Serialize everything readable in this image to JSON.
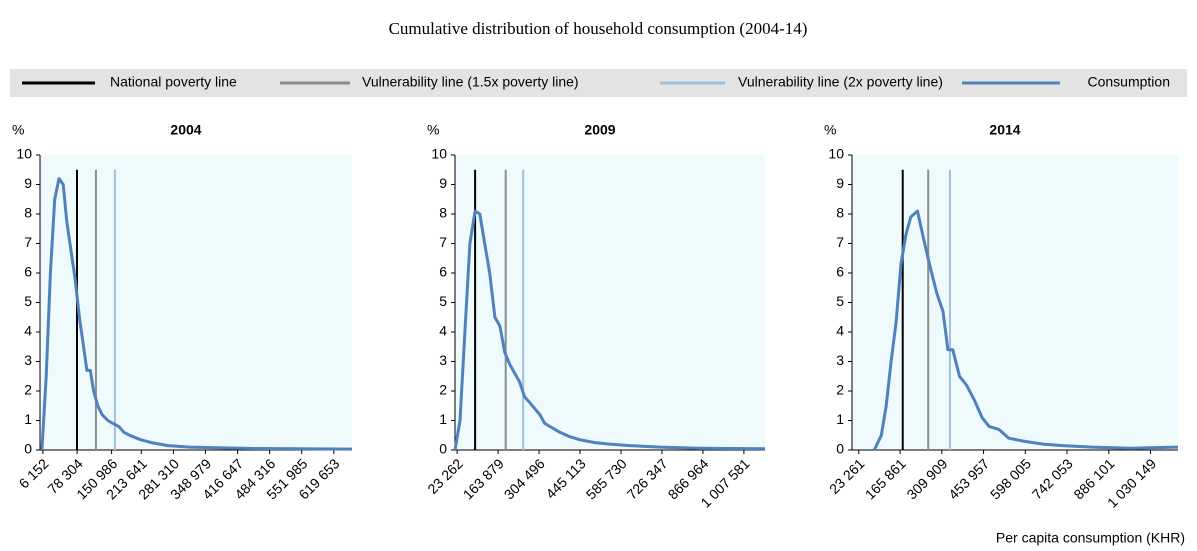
{
  "title": "Cumulative distribution of household consumption (2004-14)",
  "x_label": "Per capita consumption (KHR)",
  "legend": [
    {
      "name": "National poverty line",
      "color": "#000000"
    },
    {
      "name": "Vulnerability line (1.5x poverty line)",
      "color": "#8c8c8c"
    },
    {
      "name": "Vulnerability line (2x poverty line)",
      "color": "#9fc0de"
    },
    {
      "name": "Consumption",
      "color": "#4f81bd"
    }
  ],
  "chart_data": [
    {
      "type": "line",
      "title": "2004",
      "y_label": "%",
      "xlim": [
        0,
        658000
      ],
      "xticks": [
        {
          "value": 6152,
          "label": "6 152"
        },
        {
          "value": 78304,
          "label": "78 304"
        },
        {
          "value": 150986,
          "label": "150 986"
        },
        {
          "value": 213641,
          "label": "213 641"
        },
        {
          "value": 281310,
          "label": "281 310"
        },
        {
          "value": 348979,
          "label": "348 979"
        },
        {
          "value": 416647,
          "label": "416 647"
        },
        {
          "value": 484316,
          "label": "484 316"
        },
        {
          "value": 551985,
          "label": "551 985"
        },
        {
          "value": 619653,
          "label": "619 653"
        }
      ],
      "ylim": [
        0,
        10
      ],
      "yticks": [
        0,
        1,
        2,
        3,
        4,
        5,
        6,
        7,
        8,
        9,
        10
      ],
      "poverty_lines": [
        78000,
        118000,
        158000
      ],
      "x": [
        4000,
        13000,
        22000,
        31000,
        40000,
        49000,
        56000,
        65000,
        74000,
        83000,
        92000,
        99000,
        106000,
        113000,
        122000,
        131000,
        143000,
        154000,
        166000,
        177000,
        189000,
        212000,
        235000,
        270000,
        316000,
        362000,
        454000,
        546000,
        658000
      ],
      "values": [
        0,
        2.5,
        6,
        8.5,
        9.2,
        9,
        7.8,
        6.8,
        5.8,
        4.5,
        3.5,
        2.7,
        2.7,
        2,
        1.5,
        1.2,
        1.0,
        0.9,
        0.8,
        0.6,
        0.5,
        0.35,
        0.25,
        0.15,
        0.1,
        0.08,
        0.05,
        0.04,
        0.03
      ]
    },
    {
      "type": "line",
      "title": "2009",
      "y_label": "%",
      "xlim": [
        16000,
        1080000
      ],
      "xticks": [
        {
          "value": 23262,
          "label": "23 262"
        },
        {
          "value": 163879,
          "label": "163 879"
        },
        {
          "value": 304496,
          "label": "304 496"
        },
        {
          "value": 445113,
          "label": "445 113"
        },
        {
          "value": 585730,
          "label": "585 730"
        },
        {
          "value": 726347,
          "label": "726 347"
        },
        {
          "value": 866964,
          "label": "866 964"
        },
        {
          "value": 1007581,
          "label": "1 007 581"
        }
      ],
      "ylim": [
        0,
        10
      ],
      "yticks": [
        0,
        1,
        2,
        3,
        4,
        5,
        6,
        7,
        8,
        9,
        10
      ],
      "poverty_lines": [
        85000,
        190000,
        250000
      ],
      "x": [
        16000,
        33000,
        50000,
        67000,
        85000,
        101000,
        118000,
        135000,
        153000,
        170000,
        187000,
        204000,
        221000,
        238000,
        255000,
        273000,
        290000,
        307000,
        324000,
        341000,
        376000,
        410000,
        444000,
        496000,
        547000,
        616000,
        719000,
        856000,
        1080000
      ],
      "values": [
        0,
        1,
        4,
        7,
        8.1,
        8,
        7,
        6,
        4.5,
        4.2,
        3.3,
        2.9,
        2.6,
        2.3,
        1.8,
        1.6,
        1.4,
        1.2,
        0.9,
        0.8,
        0.6,
        0.45,
        0.35,
        0.25,
        0.2,
        0.15,
        0.1,
        0.06,
        0.04
      ]
    },
    {
      "type": "line",
      "title": "2014",
      "y_label": "%",
      "xlim": [
        0,
        1125000
      ],
      "xticks": [
        {
          "value": 23261,
          "label": "23 261"
        },
        {
          "value": 165861,
          "label": "165 861"
        },
        {
          "value": 309909,
          "label": "309 909"
        },
        {
          "value": 453957,
          "label": "453 957"
        },
        {
          "value": 598005,
          "label": "598 005"
        },
        {
          "value": 742053,
          "label": "742 053"
        },
        {
          "value": 886101,
          "label": "886 101"
        },
        {
          "value": 1030149,
          "label": "1 030 149"
        }
      ],
      "ylim": [
        0,
        10
      ],
      "yticks": [
        0,
        1,
        2,
        3,
        4,
        5,
        6,
        7,
        8,
        9,
        10
      ],
      "poverty_lines": [
        175000,
        263000,
        338000
      ],
      "x": [
        77000,
        101000,
        118000,
        135000,
        152000,
        169000,
        186000,
        203000,
        226000,
        246000,
        270000,
        293000,
        314000,
        331000,
        348000,
        371000,
        395000,
        422000,
        449000,
        473000,
        507000,
        541000,
        591000,
        659000,
        727000,
        828000,
        963000,
        1125000
      ],
      "values": [
        0,
        0.5,
        1.5,
        3,
        4.3,
        6.3,
        7.3,
        7.9,
        8.1,
        7.2,
        6.2,
        5.3,
        4.7,
        3.4,
        3.4,
        2.5,
        2.2,
        1.7,
        1.1,
        0.8,
        0.7,
        0.4,
        0.3,
        0.2,
        0.15,
        0.1,
        0.06,
        0.1
      ]
    }
  ]
}
